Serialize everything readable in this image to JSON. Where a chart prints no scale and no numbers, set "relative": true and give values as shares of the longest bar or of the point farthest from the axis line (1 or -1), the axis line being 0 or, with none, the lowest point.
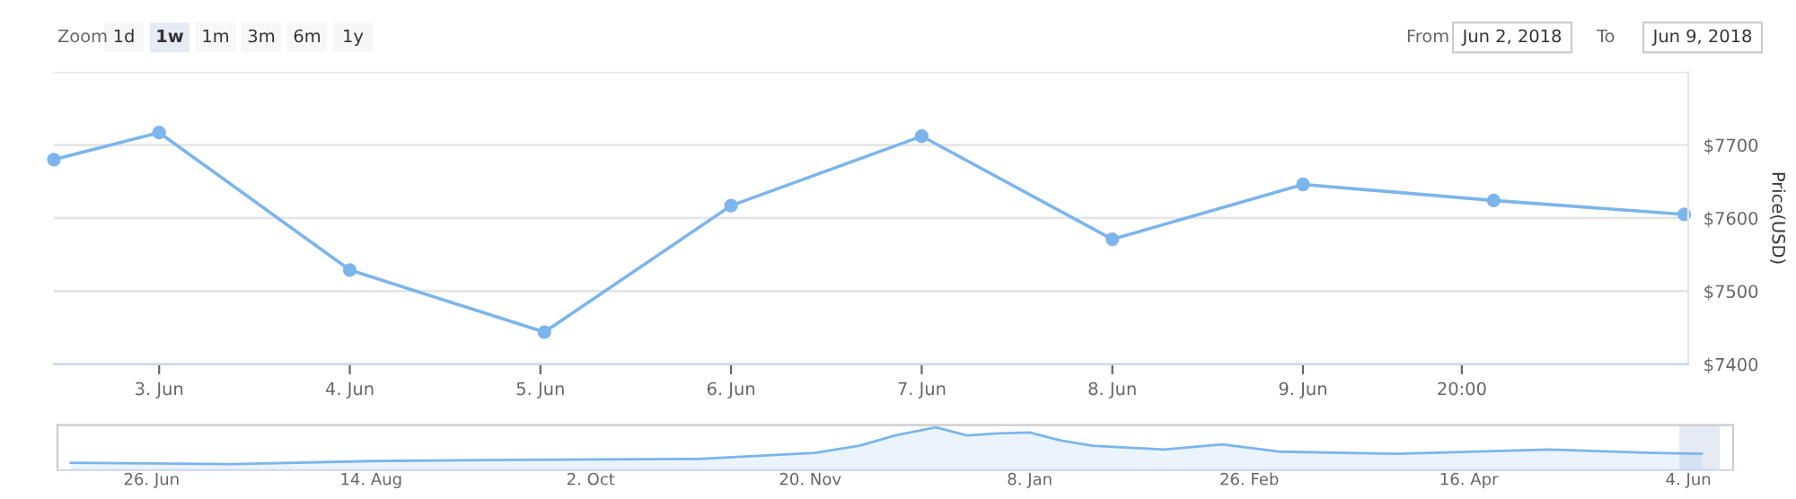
{
  "chart_data": [
    {
      "type": "line",
      "ylabel": "Price(USD)",
      "x": [
        "2018-06-02T10:45",
        "2018-06-03T00:00",
        "2018-06-04T00:00",
        "2018-06-05T00:30",
        "2018-06-06T00:00",
        "2018-06-07T00:00",
        "2018-06-08T00:00",
        "2018-06-09T00:00",
        "2018-06-10T00:00",
        "2018-06-11T00:00"
      ],
      "series": [
        {
          "color": "#7cb5ec",
          "values": [
            7680,
            7717,
            7529,
            7444,
            7617,
            7712,
            7571,
            7646,
            7624,
            7605
          ]
        }
      ],
      "xlim": [
        "2018-06-02T10:45",
        "2018-06-11T00:30"
      ],
      "xticks": [
        {
          "value": "2018-06-03",
          "label": "3. Jun"
        },
        {
          "value": "2018-06-04",
          "label": "4. Jun"
        },
        {
          "value": "2018-06-05",
          "label": "5. Jun"
        },
        {
          "value": "2018-06-06",
          "label": "6. Jun"
        },
        {
          "value": "2018-06-07",
          "label": "7. Jun"
        },
        {
          "value": "2018-06-08",
          "label": "8. Jun"
        },
        {
          "value": "2018-06-09",
          "label": "9. Jun"
        },
        {
          "value": "2018-06-09T20:00",
          "label": "20:00"
        }
      ],
      "ylim": [
        7400,
        7800
      ],
      "yticks": [
        {
          "value": 7400,
          "label": "$7400"
        },
        {
          "value": 7500,
          "label": "$7500"
        },
        {
          "value": 7600,
          "label": "$7600"
        },
        {
          "value": 7700,
          "label": "$7700"
        },
        {
          "value": 7800,
          "label": null
        }
      ],
      "grid": "y",
      "marker": "circle",
      "line_style": "solid",
      "annotations": [
        "Zoom",
        "1d",
        "1w",
        "1m",
        "3m",
        "6m",
        "1y",
        "From",
        "Jun 2, 2018",
        "To",
        "Jun 9, 2018"
      ]
    },
    {
      "type": "area",
      "relative": true,
      "x": [
        "2017-06-08",
        "2017-07-14",
        "2017-08-14",
        "2017-09-17",
        "2017-10-26",
        "2017-11-21",
        "2017-12-01",
        "2017-12-09",
        "2017-12-18",
        "2017-12-25",
        "2018-01-01",
        "2018-01-08",
        "2018-01-15",
        "2018-01-22",
        "2018-02-07",
        "2018-02-20",
        "2018-03-05",
        "2018-03-31",
        "2018-05-04",
        "2018-05-27",
        "2018-06-07"
      ],
      "series": [
        {
          "color": "#7cb5ec",
          "values": [
            0.17,
            0.14,
            0.21,
            0.24,
            0.26,
            0.4,
            0.57,
            0.81,
            1.0,
            0.81,
            0.86,
            0.88,
            0.69,
            0.57,
            0.48,
            0.6,
            0.43,
            0.38,
            0.48,
            0.4,
            0.38
          ]
        }
      ],
      "xlim": [
        "2017-06-05",
        "2018-06-14"
      ],
      "xticks": [
        {
          "value": "2017-06-26",
          "label": "26. Jun"
        },
        {
          "value": "2017-08-14",
          "label": "14. Aug"
        },
        {
          "value": "2017-10-02",
          "label": "2. Oct"
        },
        {
          "value": "2017-11-20",
          "label": "20. Nov"
        },
        {
          "value": "2018-01-08",
          "label": "8. Jan"
        },
        {
          "value": "2018-02-26",
          "label": "26. Feb"
        },
        {
          "value": "2018-04-16",
          "label": "16. Apr"
        },
        {
          "value": "2018-06-04",
          "label": "4. Jun"
        }
      ],
      "bands": [
        {
          "axis": "x",
          "from": "2018-06-02",
          "to": "2018-06-11",
          "label": null,
          "color": "#ccd6eb"
        }
      ],
      "tick_labels": "x",
      "grid": false
    }
  ]
}
